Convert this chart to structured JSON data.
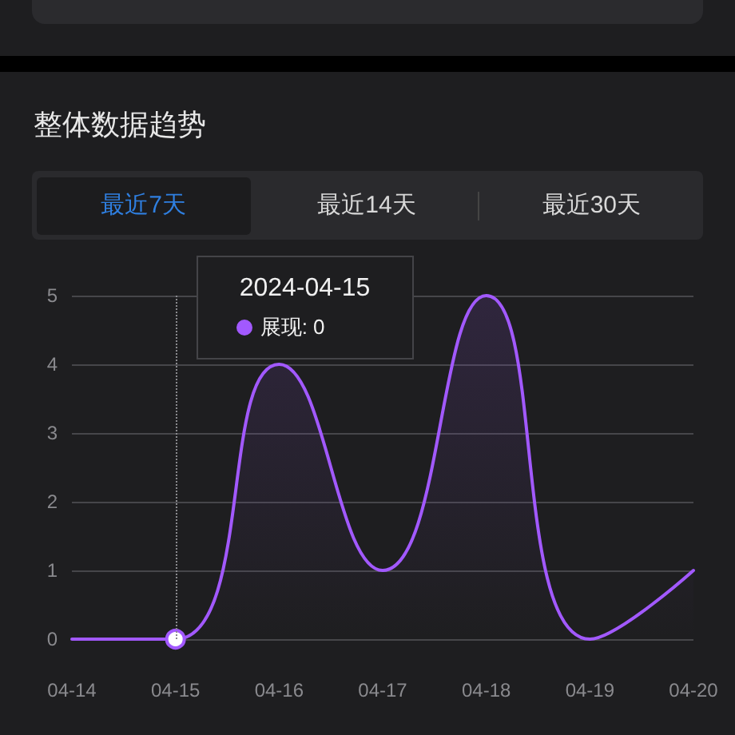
{
  "chart_data": {
    "type": "area",
    "title": "整体数据趋势",
    "categories": [
      "04-14",
      "04-15",
      "04-16",
      "04-17",
      "04-18",
      "04-19",
      "04-20"
    ],
    "series": [
      {
        "color": "#a259ff",
        "values": [
          0,
          0,
          4,
          1,
          5,
          0,
          1
        ]
      }
    ],
    "ylim": [
      0,
      5
    ],
    "yticks": [
      0,
      1,
      2,
      3,
      4,
      5
    ],
    "grid": "y",
    "marker": "none",
    "line_style": "solid",
    "ref_lines": [
      {
        "axis": "x",
        "value": "04-15",
        "color": "#8a8a8e",
        "line_style": "dotted"
      }
    ],
    "annotations": [
      "最近7天",
      "最近14天",
      "最近30天",
      "2024-04-15",
      "展现: 0"
    ]
  }
}
